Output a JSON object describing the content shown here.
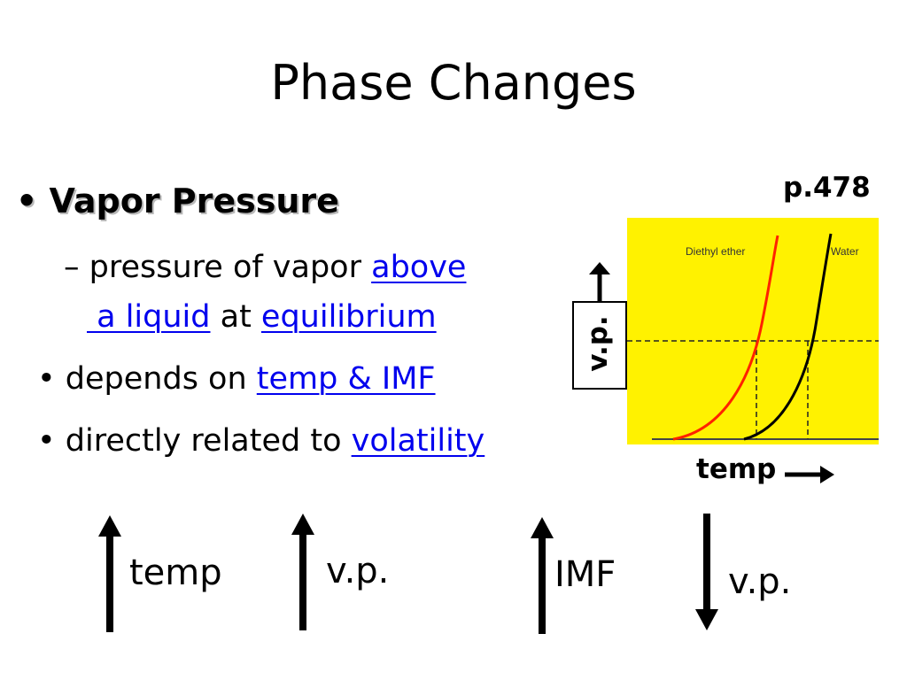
{
  "slide": {
    "title": "Phase Changes",
    "page_ref": "p.478",
    "heading": {
      "bullet": "•",
      "text": "Vapor Pressure"
    },
    "definition": {
      "dash": "–",
      "prefix": "pressure of vapor ",
      "link1_part1": "above",
      "link1_part2": " a liquid",
      "middle": " at ",
      "link2": "equilibrium"
    },
    "depends": {
      "bullet": "•",
      "prefix": "depends on ",
      "link": "temp & IMF"
    },
    "related": {
      "bullet": "•",
      "prefix": "directly related to ",
      "link": "volatility"
    }
  },
  "graph": {
    "series_labels": [
      "Diethyl ether",
      "Water"
    ],
    "y_axis_label": "v.p.",
    "x_axis_label": "temp",
    "colors": {
      "background": "#fff200",
      "ether": "#ff2200",
      "water": "#000000"
    }
  },
  "relationships": [
    {
      "direction": "up",
      "label": "temp"
    },
    {
      "direction": "up",
      "label": "v.p."
    },
    {
      "direction": "up",
      "label": "IMF"
    },
    {
      "direction": "down",
      "label": "v.p."
    }
  ],
  "colors": {
    "link": "#0000ee",
    "text": "#000000"
  }
}
